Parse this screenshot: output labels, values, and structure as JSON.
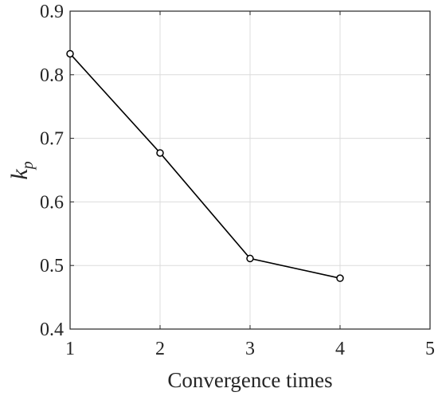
{
  "chart_data": {
    "type": "line",
    "title": "",
    "xlabel": "Convergence times",
    "ylabel": "k",
    "ylabel_subscript": "p",
    "xlim": [
      1,
      5
    ],
    "ylim": [
      0.4,
      0.9
    ],
    "x_ticks": [
      "1",
      "2",
      "3",
      "4",
      "5"
    ],
    "y_ticks": [
      "0.4",
      "0.5",
      "0.6",
      "0.7",
      "0.8",
      "0.9"
    ],
    "grid": true,
    "legend": "none",
    "series": [
      {
        "x": [
          1,
          2,
          3,
          4
        ],
        "values": [
          0.833,
          0.677,
          0.511,
          0.48
        ],
        "color": "#000000",
        "marker": "circle-open"
      }
    ]
  },
  "colors": {
    "line": "#000000",
    "axis": "#262626",
    "grid": "#dcdcdc"
  }
}
